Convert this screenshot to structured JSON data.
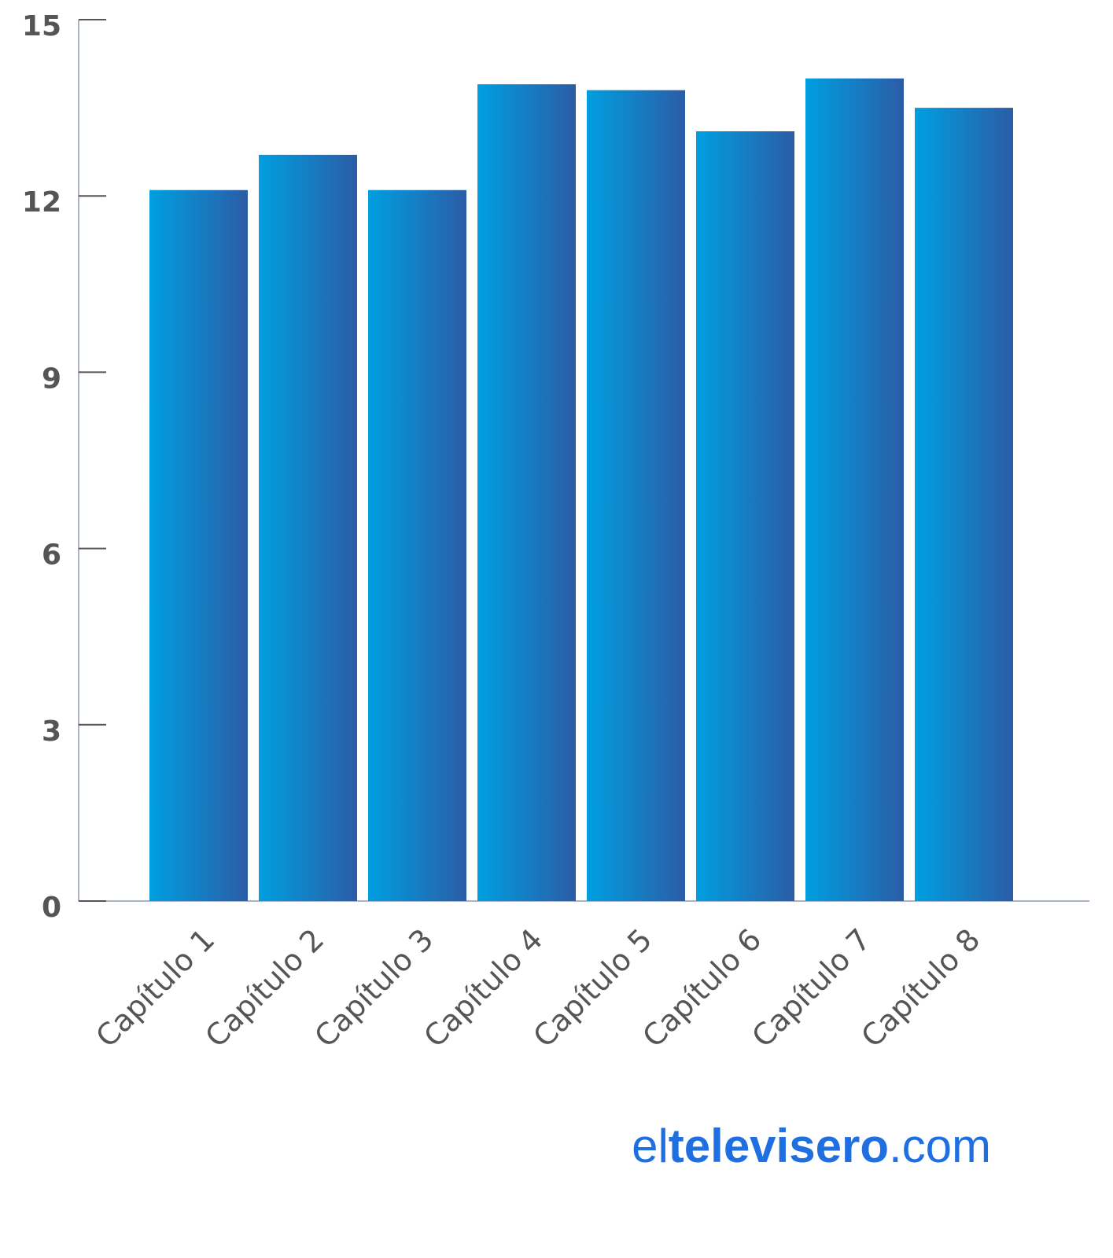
{
  "chart_data": {
    "type": "bar",
    "categories": [
      "Capítulo 1",
      "Capítulo 2",
      "Capítulo 3",
      "Capítulo 4",
      "Capítulo 5",
      "Capítulo 6",
      "Capítulo 7",
      "Capítulo 8"
    ],
    "values": [
      12.1,
      12.7,
      12.1,
      13.9,
      13.8,
      13.1,
      14.0,
      13.5
    ],
    "colors": [
      "#009fe0",
      "#2b5ca6"
    ],
    "ylim": [
      0,
      15
    ],
    "yticks": [
      0,
      3,
      6,
      9,
      12,
      15
    ],
    "grid": false
  },
  "watermark": {
    "parts": [
      "el",
      "televisero",
      ".com"
    ],
    "color": "#1f6fe0"
  }
}
